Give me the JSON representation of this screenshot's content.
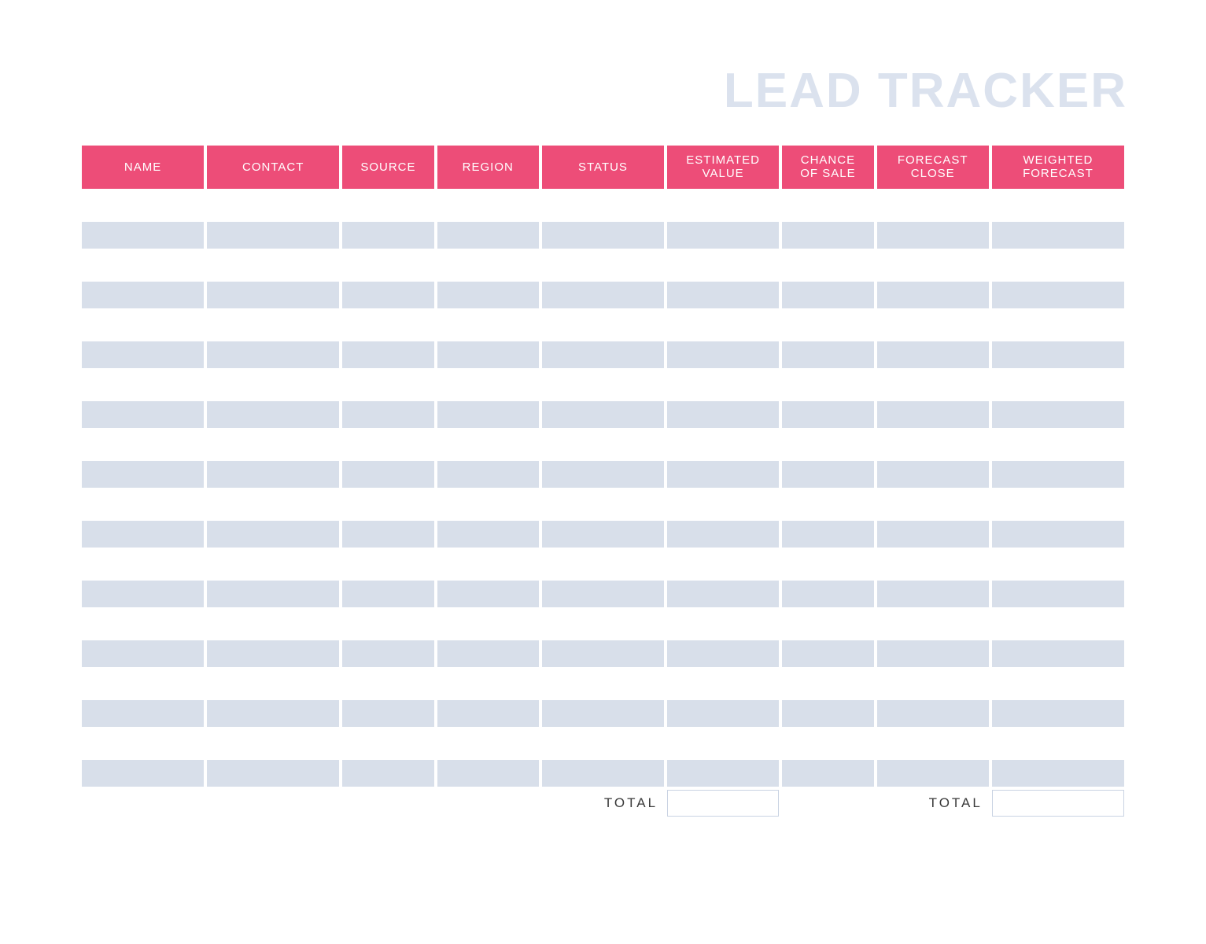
{
  "title": "LEAD TRACKER",
  "title_color": "#dbe2ee",
  "header_bg": "#ed4d78",
  "header_text_color": "#ffffff",
  "row_odd_bg": "#ffffff",
  "row_even_bg": "#d8dfea",
  "border_color": "#c9d3e3",
  "columns": [
    {
      "label_line1": "NAME",
      "label_line2": "",
      "width": "12%"
    },
    {
      "label_line1": "CONTACT",
      "label_line2": "",
      "width": "13%"
    },
    {
      "label_line1": "SOURCE",
      "label_line2": "",
      "width": "9%"
    },
    {
      "label_line1": "REGION",
      "label_line2": "",
      "width": "10%"
    },
    {
      "label_line1": "STATUS",
      "label_line2": "",
      "width": "12%"
    },
    {
      "label_line1": "ESTIMATED",
      "label_line2": "VALUE",
      "width": "11%"
    },
    {
      "label_line1": "CHANCE",
      "label_line2": "OF SALE",
      "width": "9%"
    },
    {
      "label_line1": "FORECAST",
      "label_line2": "CLOSE",
      "width": "11%"
    },
    {
      "label_line1": "WEIGHTED",
      "label_line2": "FORECAST",
      "width": "13%"
    }
  ],
  "row_count": 20,
  "footer": {
    "total_label": "TOTAL",
    "estimated_total": "",
    "weighted_total": ""
  }
}
